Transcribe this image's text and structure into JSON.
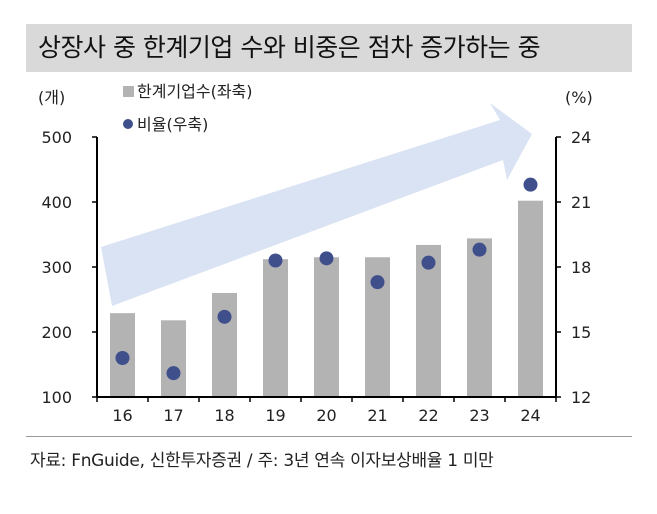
{
  "title": "상장사 중 한계기업 수와 비중은 점차 증가하는 중",
  "source": "자료: FnGuide, 신한투자증권 / 주: 3년 연속 이자보상배율 1 미만",
  "chart_data": {
    "type": "bar",
    "categories": [
      "16",
      "17",
      "18",
      "19",
      "20",
      "21",
      "22",
      "23",
      "24"
    ],
    "series": [
      {
        "name": "한계기업수(좌축)",
        "type": "bar",
        "axis": "left",
        "color": "#b3b3b3",
        "values": [
          229,
          218,
          260,
          312,
          315,
          315,
          334,
          344,
          402
        ]
      },
      {
        "name": "비율(우축)",
        "type": "scatter",
        "axis": "right",
        "color": "#3f4f8c",
        "values": [
          13.8,
          13.1,
          15.7,
          18.3,
          18.4,
          17.3,
          18.2,
          18.8,
          21.8
        ]
      }
    ],
    "left_axis": {
      "label": "(개)",
      "ylim": [
        100,
        500
      ],
      "ticks": [
        "100",
        "200",
        "300",
        "400",
        "500"
      ]
    },
    "right_axis": {
      "label": "(%)",
      "ylim": [
        12,
        24
      ],
      "ticks": [
        "12",
        "15",
        "18",
        "21",
        "24"
      ]
    },
    "legend": "top-left",
    "annotation": "upward trend arrow"
  }
}
